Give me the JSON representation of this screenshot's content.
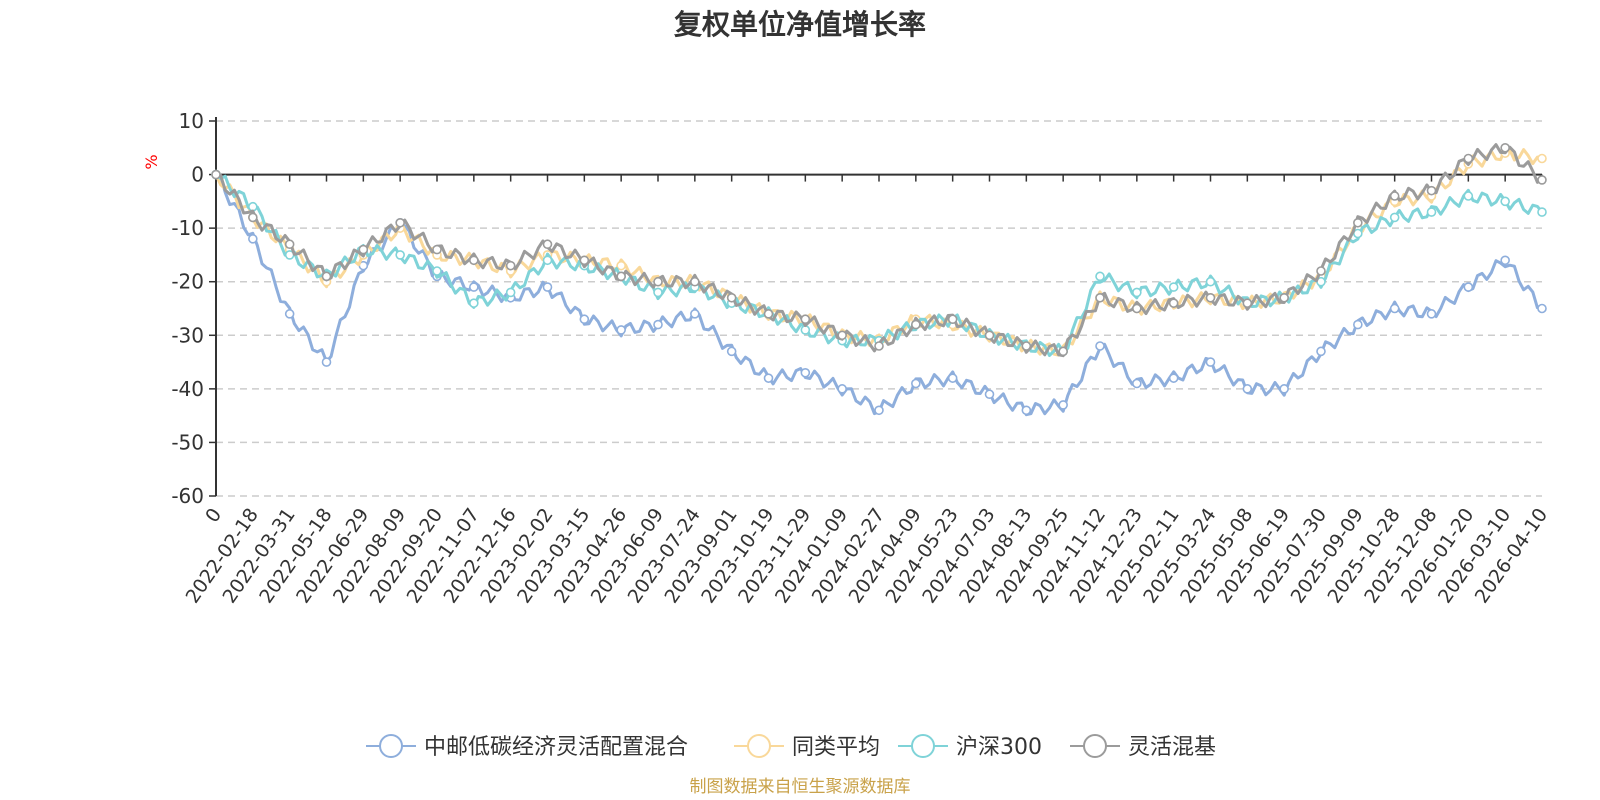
{
  "chart_data": {
    "type": "line",
    "title": "复权单位净值增长率",
    "ylabel": "%",
    "xlabel": "",
    "ylim": [
      -60,
      10
    ],
    "yticks": [
      10,
      0,
      -10,
      -20,
      -30,
      -40,
      -50,
      -60
    ],
    "grid": true,
    "legend_position": "bottom-center",
    "categories": [
      "0",
      "2022-02-18",
      "2022-03-31",
      "2022-05-18",
      "2022-06-29",
      "2022-08-09",
      "2022-09-20",
      "2022-11-07",
      "2022-12-16",
      "2023-02-02",
      "2023-03-15",
      "2023-04-26",
      "2023-06-09",
      "2023-07-24",
      "2023-09-01",
      "2023-10-19",
      "2023-11-29",
      "2024-01-09",
      "2024-02-27",
      "2024-04-09",
      "2024-05-23",
      "2024-07-03",
      "2024-08-13",
      "2024-09-25",
      "2024-11-12",
      "2024-12-23",
      "2025-02-11",
      "2025-03-24",
      "2025-05-08",
      "2025-06-19",
      "2025-07-30",
      "2025-09-09",
      "2025-10-28",
      "2025-12-08",
      "2026-01-20",
      "2026-03-10",
      "2026-04-10"
    ],
    "series": [
      {
        "name": "中邮低碳经济灵活配置混合",
        "color": "#8eaedc",
        "values": [
          0,
          -12,
          -26,
          -35,
          -17,
          -9,
          -19,
          -21,
          -23,
          -21,
          -27,
          -29,
          -28,
          -26,
          -33,
          -38,
          -37,
          -40,
          -44,
          -39,
          -38,
          -41,
          -44,
          -43,
          -32,
          -39,
          -38,
          -35,
          -40,
          -40,
          -33,
          -28,
          -25,
          -26,
          -21,
          -16,
          -25
        ]
      },
      {
        "name": "同类平均",
        "color": "#f9d89a",
        "values": [
          0,
          -8,
          -14,
          -20,
          -15,
          -10,
          -15,
          -16,
          -18,
          -15,
          -16,
          -17,
          -20,
          -20,
          -23,
          -26,
          -27,
          -30,
          -31,
          -27,
          -28,
          -30,
          -32,
          -33,
          -23,
          -25,
          -24,
          -23,
          -24,
          -23,
          -19,
          -10,
          -5,
          -4,
          2,
          4,
          3
        ]
      },
      {
        "name": "沪深300",
        "color": "#7fd3d8",
        "values": [
          0,
          -6,
          -15,
          -19,
          -14,
          -15,
          -18,
          -24,
          -22,
          -16,
          -17,
          -19,
          -22,
          -21,
          -24,
          -26,
          -29,
          -31,
          -31,
          -28,
          -27,
          -30,
          -32,
          -33,
          -19,
          -22,
          -21,
          -20,
          -24,
          -23,
          -20,
          -11,
          -8,
          -7,
          -4,
          -5,
          -7
        ]
      },
      {
        "name": "灵活混基",
        "color": "#9b9b9b",
        "values": [
          0,
          -8,
          -13,
          -19,
          -14,
          -9,
          -14,
          -16,
          -17,
          -13,
          -16,
          -19,
          -20,
          -20,
          -23,
          -26,
          -27,
          -30,
          -32,
          -28,
          -27,
          -30,
          -32,
          -33,
          -23,
          -25,
          -24,
          -23,
          -24,
          -23,
          -18,
          -9,
          -4,
          -3,
          3,
          5,
          -1
        ]
      }
    ]
  },
  "source_text": "制图数据来自恒生聚源数据库",
  "colors": {
    "axis": "#333333",
    "grid": "#cccccc",
    "ylabel": "#ff0000",
    "source": "#c9a24a"
  }
}
